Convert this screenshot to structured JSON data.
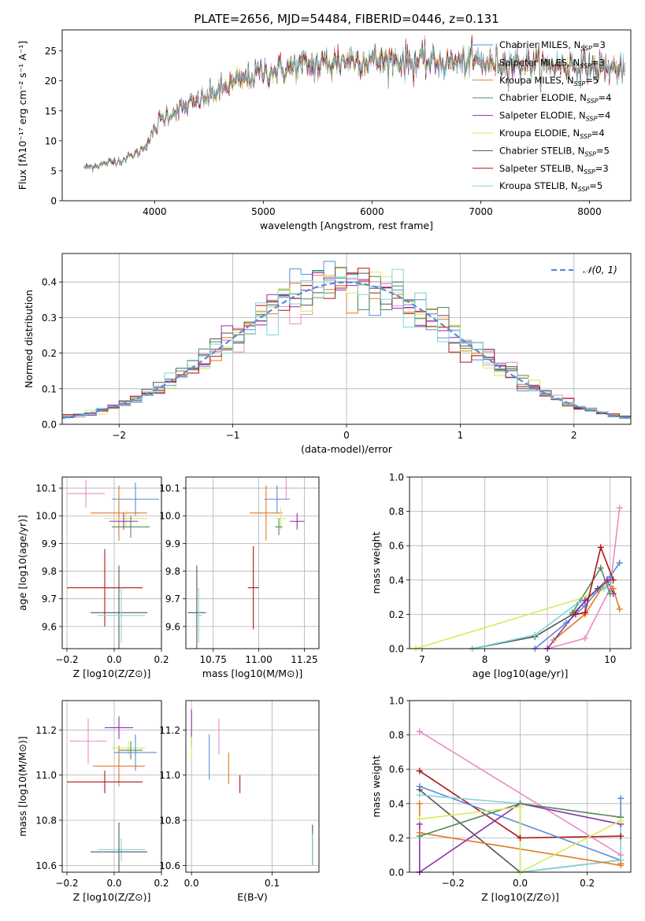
{
  "figure_title": "PLATE=2656, MJD=54484, FIBERID=0446, z=0.131",
  "colors": {
    "chabrier_miles": "#5b8bd9",
    "salpeter_miles": "#e88cc4",
    "kroupa_miles": "#e07b23",
    "chabrier_elodie": "#4f8a5b",
    "salpeter_elodie": "#8e2fb0",
    "kroupa_elodie": "#d7ea5e",
    "chabrier_stelib": "#555555",
    "salpeter_stelib": "#b01515",
    "kroupa_stelib": "#7fd6da",
    "normal_curve": "#5b8bd9"
  },
  "chart_data": [
    {
      "id": "spectrum",
      "type": "line",
      "xlabel": "wavelength [Angstrom, rest frame]",
      "ylabel": "Flux [fλ10⁻¹⁷ erg cm⁻² s⁻¹ A⁻¹]",
      "xlim": [
        3150,
        8380
      ],
      "ylim": [
        0,
        28.5
      ],
      "xticks": [
        4000,
        5000,
        6000,
        7000,
        8000
      ],
      "yticks": [
        0,
        5,
        10,
        15,
        20,
        25
      ],
      "grid": false,
      "legend_position": "top-right",
      "continuum": {
        "x": [
          3350,
          3500,
          3700,
          3850,
          3950,
          4050,
          4200,
          4400,
          4600,
          4800,
          5000,
          5200,
          5400,
          5600,
          5800,
          6000,
          6200,
          6400,
          6600,
          6800,
          7000,
          7200,
          7400,
          7600,
          7800,
          8000,
          8200,
          8330
        ],
        "y": [
          5.5,
          6,
          6.8,
          8,
          10,
          13.5,
          15,
          16.5,
          18.5,
          20,
          21.5,
          22,
          22.5,
          23,
          23.5,
          23.5,
          23.5,
          23.2,
          23.2,
          23,
          23,
          23,
          22.8,
          22.5,
          22.5,
          22.3,
          22,
          21.8
        ]
      },
      "series": [
        {
          "name": "Chabrier MILES, N_SSP=3",
          "color_key": "chabrier_miles"
        },
        {
          "name": "Salpeter MILES, N_SSP=3",
          "color_key": "salpeter_miles"
        },
        {
          "name": "Kroupa MILES, N_SSP=5",
          "color_key": "kroupa_miles"
        },
        {
          "name": "Chabrier ELODIE, N_SSP=4",
          "color_key": "chabrier_elodie"
        },
        {
          "name": "Salpeter ELODIE, N_SSP=4",
          "color_key": "salpeter_elodie"
        },
        {
          "name": "Kroupa ELODIE, N_SSP=4",
          "color_key": "kroupa_elodie"
        },
        {
          "name": "Chabrier STELIB, N_SSP=5",
          "color_key": "chabrier_stelib"
        },
        {
          "name": "Salpeter STELIB, N_SSP=3",
          "color_key": "salpeter_stelib"
        },
        {
          "name": "Kroupa STELIB, N_SSP=5",
          "color_key": "kroupa_stelib"
        }
      ]
    },
    {
      "id": "residuals",
      "type": "histogram",
      "xlabel": "(data-model)/error",
      "ylabel": "Normed distribution",
      "xlim": [
        -2.5,
        2.5
      ],
      "ylim": [
        0,
        0.48
      ],
      "xticks": [
        -2,
        -1,
        0,
        1,
        2
      ],
      "yticks": [
        0.0,
        0.1,
        0.2,
        0.3,
        0.4
      ],
      "grid": true,
      "legend_position": "top-right",
      "legend_entries": [
        "N(0,1)"
      ],
      "bin_width": 0.1,
      "reference_curve": {
        "name": "N(0,1)",
        "mean": 0,
        "sigma": 1
      }
    },
    {
      "id": "age_vs_Z",
      "type": "errorbar",
      "xlabel": "Z [log10(Z/Z⊙)]",
      "ylabel": "age [log10(age/yr)]",
      "xlim": [
        -0.22,
        0.2
      ],
      "ylim": [
        9.52,
        10.14
      ],
      "xticks": [
        -0.2,
        0.0,
        0.2
      ],
      "yticks": [
        9.6,
        9.7,
        9.8,
        9.9,
        10.0,
        10.1
      ],
      "grid": true,
      "points": [
        {
          "color_key": "salpeter_miles",
          "x": -0.12,
          "y": 10.08,
          "xerr": 0.08,
          "yerr": 0.05
        },
        {
          "color_key": "chabrier_miles",
          "x": 0.09,
          "y": 10.06,
          "xerr": 0.1,
          "yerr": 0.06
        },
        {
          "color_key": "kroupa_miles",
          "x": 0.02,
          "y": 10.01,
          "xerr": 0.12,
          "yerr": 0.1
        },
        {
          "color_key": "kroupa_elodie",
          "x": 0.05,
          "y": 9.99,
          "xerr": 0.09,
          "yerr": 0.03
        },
        {
          "color_key": "salpeter_elodie",
          "x": 0.04,
          "y": 9.98,
          "xerr": 0.06,
          "yerr": 0.03
        },
        {
          "color_key": "chabrier_elodie",
          "x": 0.07,
          "y": 9.96,
          "xerr": 0.08,
          "yerr": 0.04
        },
        {
          "color_key": "salpeter_stelib",
          "x": -0.04,
          "y": 9.74,
          "xerr": 0.16,
          "yerr": 0.14
        },
        {
          "color_key": "chabrier_stelib",
          "x": 0.02,
          "y": 9.65,
          "xerr": 0.12,
          "yerr": 0.17
        },
        {
          "color_key": "kroupa_stelib",
          "x": 0.03,
          "y": 9.64,
          "xerr": 0.1,
          "yerr": 0.1
        }
      ]
    },
    {
      "id": "age_vs_mass",
      "type": "errorbar",
      "xlabel": "mass [log10(M/M⊙)]",
      "ylabel": "",
      "xlim": [
        10.6,
        11.33
      ],
      "ylim": [
        9.52,
        10.14
      ],
      "xticks": [
        10.75,
        11.0,
        11.25
      ],
      "yticks": [
        9.6,
        9.7,
        9.8,
        9.9,
        10.0,
        10.1
      ],
      "grid": true,
      "points": [
        {
          "color_key": "salpeter_miles",
          "x": 11.15,
          "y": 10.1,
          "xerr": 0.03,
          "yerr": 0.04
        },
        {
          "color_key": "chabrier_miles",
          "x": 11.1,
          "y": 10.06,
          "xerr": 0.07,
          "yerr": 0.05
        },
        {
          "color_key": "kroupa_miles",
          "x": 11.04,
          "y": 10.01,
          "xerr": 0.09,
          "yerr": 0.1
        },
        {
          "color_key": "kroupa_elodie",
          "x": 11.12,
          "y": 9.99,
          "xerr": 0.03,
          "yerr": 0.04
        },
        {
          "color_key": "salpeter_elodie",
          "x": 11.21,
          "y": 9.98,
          "xerr": 0.04,
          "yerr": 0.03
        },
        {
          "color_key": "chabrier_elodie",
          "x": 11.11,
          "y": 9.96,
          "xerr": 0.02,
          "yerr": 0.03
        },
        {
          "color_key": "salpeter_stelib",
          "x": 10.97,
          "y": 9.74,
          "xerr": 0.03,
          "yerr": 0.15
        },
        {
          "color_key": "chabrier_stelib",
          "x": 10.66,
          "y": 9.65,
          "xerr": 0.05,
          "yerr": 0.17
        },
        {
          "color_key": "kroupa_stelib",
          "x": 10.67,
          "y": 9.64,
          "xerr": 0.02,
          "yerr": 0.1
        }
      ]
    },
    {
      "id": "weight_vs_age",
      "type": "line",
      "xlabel": "age [log10(age/yr)]",
      "ylabel": "mass weight",
      "xlim": [
        6.8,
        10.33
      ],
      "ylim": [
        0.0,
        1.0
      ],
      "xticks": [
        7,
        8,
        9,
        10
      ],
      "yticks": [
        0.0,
        0.2,
        0.4,
        0.6,
        0.8,
        1.0
      ],
      "grid": true,
      "series": [
        {
          "color_key": "kroupa_elodie",
          "x": [
            6.9,
            9.6,
            10.0
          ],
          "y": [
            0.0,
            0.3,
            0.38
          ]
        },
        {
          "color_key": "chabrier_stelib",
          "x": [
            7.8,
            8.8,
            9.4,
            9.8,
            10.0
          ],
          "y": [
            0.0,
            0.07,
            0.2,
            0.35,
            0.4
          ]
        },
        {
          "color_key": "kroupa_stelib",
          "x": [
            7.8,
            8.8,
            9.5,
            9.9,
            10.0
          ],
          "y": [
            0.0,
            0.08,
            0.27,
            0.35,
            0.38
          ]
        },
        {
          "color_key": "chabrier_miles",
          "x": [
            8.8,
            9.3,
            9.6,
            10.0,
            10.15
          ],
          "y": [
            0.0,
            0.15,
            0.25,
            0.42,
            0.5
          ]
        },
        {
          "color_key": "salpeter_miles",
          "x": [
            9.0,
            9.6,
            10.0,
            10.15
          ],
          "y": [
            0.0,
            0.06,
            0.35,
            0.82
          ]
        },
        {
          "color_key": "kroupa_miles",
          "x": [
            9.1,
            9.6,
            9.95,
            10.05,
            10.15
          ],
          "y": [
            0.05,
            0.2,
            0.4,
            0.35,
            0.23
          ]
        },
        {
          "color_key": "salpeter_elodie",
          "x": [
            9.0,
            9.6,
            9.95,
            10.05
          ],
          "y": [
            0.0,
            0.28,
            0.4,
            0.32
          ]
        },
        {
          "color_key": "chabrier_elodie",
          "x": [
            9.4,
            9.85,
            10.0
          ],
          "y": [
            0.21,
            0.47,
            0.32
          ]
        },
        {
          "color_key": "salpeter_stelib",
          "x": [
            9.45,
            9.6,
            9.85,
            10.05
          ],
          "y": [
            0.2,
            0.21,
            0.59,
            0.4
          ]
        }
      ]
    },
    {
      "id": "mass_vs_Z",
      "type": "errorbar",
      "xlabel": "Z [log10(Z/Z⊙)]",
      "ylabel": "mass [log10(M/M⊙)]",
      "xlim": [
        -0.22,
        0.2
      ],
      "ylim": [
        10.57,
        11.33
      ],
      "xticks": [
        -0.2,
        0.0,
        0.2
      ],
      "yticks": [
        10.6,
        10.8,
        11.0,
        11.2
      ],
      "grid": true,
      "points": [
        {
          "color_key": "salpeter_elodie",
          "x": 0.02,
          "y": 11.21,
          "xerr": 0.06,
          "yerr": 0.05
        },
        {
          "color_key": "salpeter_miles",
          "x": -0.11,
          "y": 11.15,
          "xerr": 0.08,
          "yerr": 0.1
        },
        {
          "color_key": "kroupa_elodie",
          "x": 0.06,
          "y": 11.12,
          "xerr": 0.07,
          "yerr": 0.03
        },
        {
          "color_key": "chabrier_miles",
          "x": 0.09,
          "y": 11.1,
          "xerr": 0.09,
          "yerr": 0.08
        },
        {
          "color_key": "chabrier_elodie",
          "x": 0.07,
          "y": 11.11,
          "xerr": 0.05,
          "yerr": 0.04
        },
        {
          "color_key": "kroupa_miles",
          "x": 0.02,
          "y": 11.04,
          "xerr": 0.11,
          "yerr": 0.09
        },
        {
          "color_key": "salpeter_stelib",
          "x": -0.04,
          "y": 10.97,
          "xerr": 0.16,
          "yerr": 0.05
        },
        {
          "color_key": "kroupa_stelib",
          "x": 0.03,
          "y": 10.67,
          "xerr": 0.1,
          "yerr": 0.05
        },
        {
          "color_key": "chabrier_stelib",
          "x": 0.02,
          "y": 10.66,
          "xerr": 0.12,
          "yerr": 0.13
        }
      ]
    },
    {
      "id": "mass_vs_ebv",
      "type": "vlines",
      "xlabel": "E(B-V)",
      "ylabel": "",
      "xlim": [
        -0.007,
        0.158
      ],
      "ylim": [
        10.57,
        11.33
      ],
      "xticks": [
        0.0,
        0.1
      ],
      "yticks": [
        10.6,
        10.8,
        11.0,
        11.2
      ],
      "grid": true,
      "points": [
        {
          "color_key": "salpeter_elodie",
          "x": 0.0,
          "y": 11.21,
          "yerr": 0.08
        },
        {
          "color_key": "kroupa_elodie",
          "x": 0.0,
          "y": 11.12,
          "yerr": 0.05
        },
        {
          "color_key": "salpeter_miles",
          "x": 0.034,
          "y": 11.17,
          "yerr": 0.08
        },
        {
          "color_key": "chabrier_miles",
          "x": 0.022,
          "y": 11.08,
          "yerr": 0.1
        },
        {
          "color_key": "kroupa_miles",
          "x": 0.046,
          "y": 11.03,
          "yerr": 0.07
        },
        {
          "color_key": "salpeter_stelib",
          "x": 0.06,
          "y": 10.96,
          "yerr": 0.04
        },
        {
          "color_key": "chabrier_stelib",
          "x": 0.15,
          "y": 10.69,
          "yerr": 0.09
        },
        {
          "color_key": "kroupa_stelib",
          "x": 0.15,
          "y": 10.67,
          "yerr": 0.07
        }
      ]
    },
    {
      "id": "weight_vs_Z",
      "type": "line",
      "xlabel": "Z [log10(Z/Z⊙)]",
      "ylabel": "mass weight",
      "xlim": [
        -0.33,
        0.33
      ],
      "ylim": [
        0.0,
        1.0
      ],
      "xticks": [
        -0.2,
        0.0,
        0.2
      ],
      "yticks": [
        0.0,
        0.2,
        0.4,
        0.6,
        0.8,
        1.0
      ],
      "grid": true,
      "series": [
        {
          "color_key": "salpeter_miles",
          "x": [
            -0.3,
            0.3
          ],
          "y": [
            0.82,
            0.1
          ]
        },
        {
          "color_key": "salpeter_stelib",
          "x": [
            -0.3,
            0.0,
            0.3
          ],
          "y": [
            0.59,
            0.2,
            0.21
          ]
        },
        {
          "color_key": "chabrier_miles",
          "x": [
            -0.3,
            0.3,
            0.3
          ],
          "y": [
            0.5,
            0.07,
            0.43
          ]
        },
        {
          "color_key": "chabrier_stelib",
          "x": [
            -0.3,
            0.0,
            0.3
          ],
          "y": [
            0.48,
            0.0,
            0.07
          ]
        },
        {
          "color_key": "kroupa_stelib",
          "x": [
            -0.3,
            0.0,
            0.0,
            0.3,
            0.3
          ],
          "y": [
            0.45,
            0.4,
            0.0,
            0.07,
            0.28
          ]
        },
        {
          "color_key": "kroupa_miles",
          "x": [
            -0.3,
            -0.3,
            0.3,
            0.3
          ],
          "y": [
            0.4,
            0.23,
            0.04,
            0.05
          ]
        },
        {
          "color_key": "salpeter_elodie",
          "x": [
            -0.3,
            -0.3,
            0.0,
            0.3
          ],
          "y": [
            0.28,
            0.0,
            0.4,
            0.28
          ]
        },
        {
          "color_key": "chabrier_elodie",
          "x": [
            -0.3,
            0.0,
            0.3
          ],
          "y": [
            0.21,
            0.4,
            0.32
          ]
        },
        {
          "color_key": "kroupa_elodie",
          "x": [
            -0.3,
            0.0,
            0.0,
            0.3
          ],
          "y": [
            0.31,
            0.38,
            0.0,
            0.3
          ]
        }
      ]
    }
  ]
}
